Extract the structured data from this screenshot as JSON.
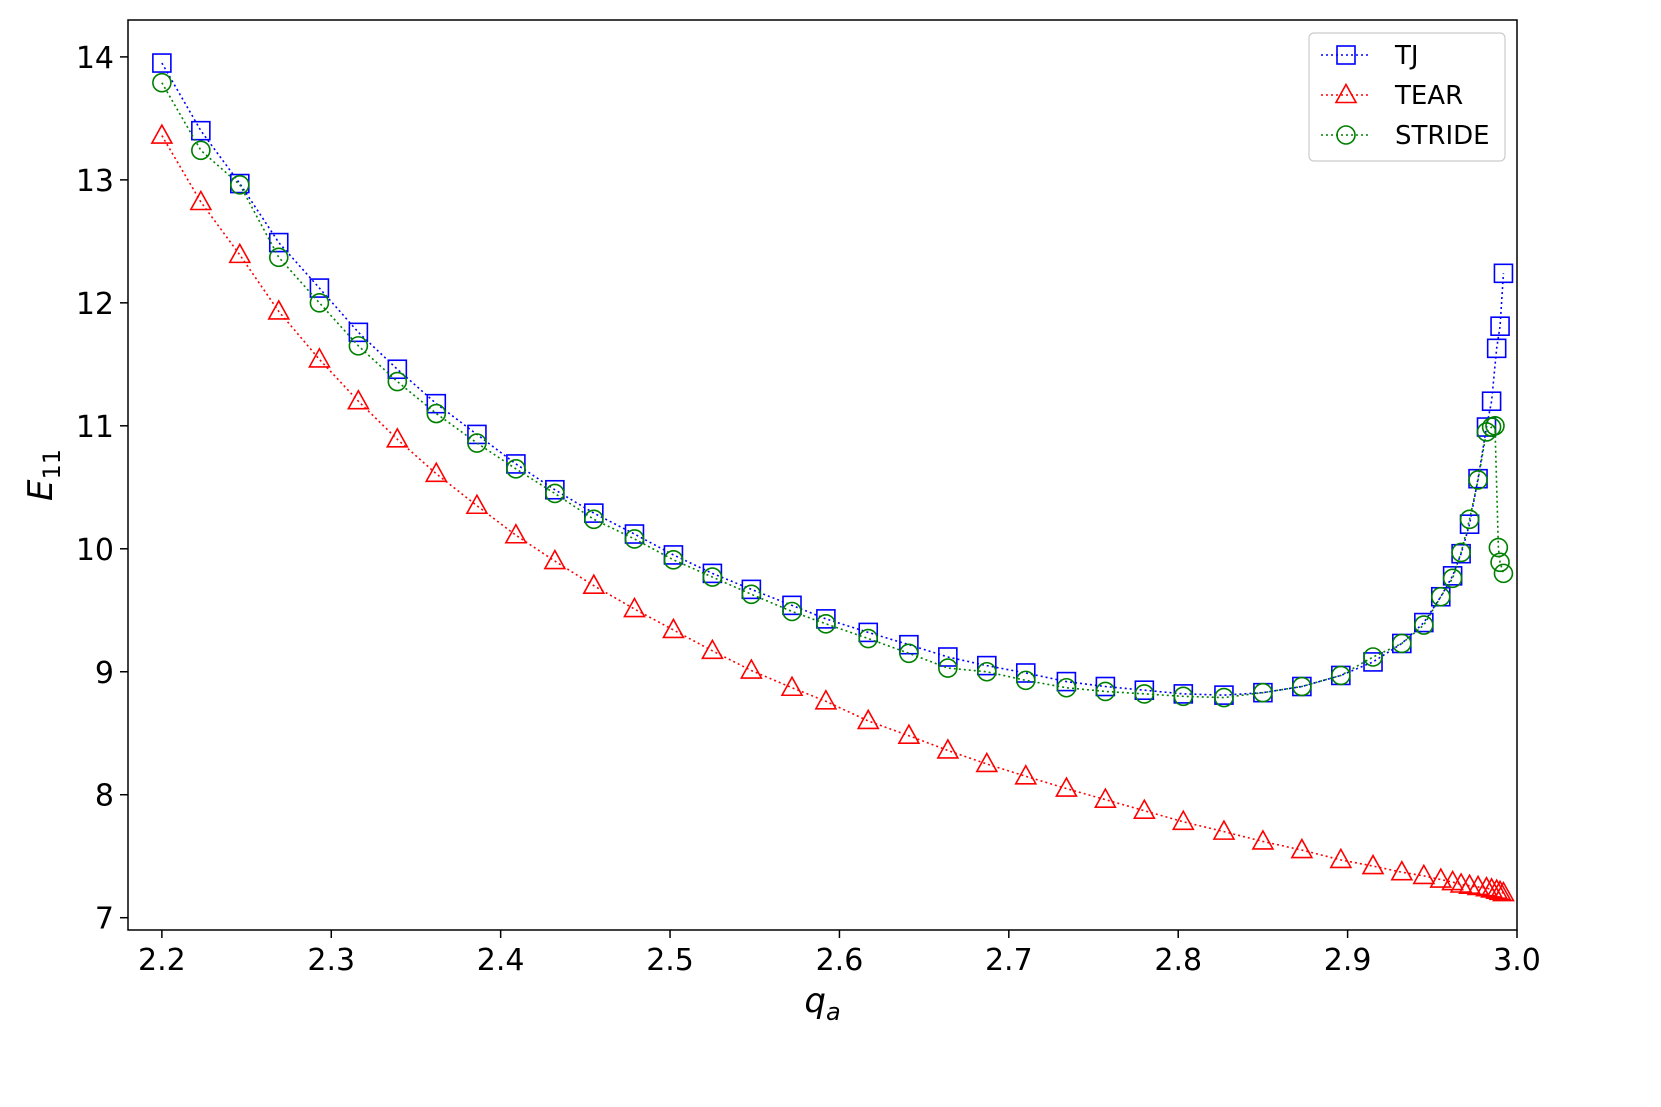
{
  "chart_data": {
    "type": "line",
    "xlabel": "q",
    "xlabel_sub": "a",
    "ylabel": "E",
    "ylabel_sub": "11",
    "xlim": [
      2.18,
      3.0
    ],
    "ylim": [
      6.9,
      14.3
    ],
    "xticks": [
      "2.2",
      "2.3",
      "2.4",
      "2.5",
      "2.6",
      "2.7",
      "2.8",
      "2.9",
      "3.0"
    ],
    "yticks": [
      "7",
      "8",
      "9",
      "10",
      "11",
      "12",
      "13",
      "14"
    ],
    "legend_position": "top-right",
    "grid": false,
    "series": [
      {
        "name": "TJ",
        "color": "#0000ff",
        "marker": "square",
        "x": [
          2.2,
          2.223,
          2.246,
          2.269,
          2.293,
          2.316,
          2.339,
          2.362,
          2.386,
          2.409,
          2.432,
          2.455,
          2.479,
          2.502,
          2.525,
          2.548,
          2.572,
          2.592,
          2.617,
          2.641,
          2.664,
          2.687,
          2.71,
          2.734,
          2.757,
          2.78,
          2.803,
          2.827,
          2.85,
          2.873,
          2.896,
          2.915,
          2.932,
          2.945,
          2.955,
          2.962,
          2.967,
          2.972,
          2.977,
          2.982,
          2.985,
          2.988,
          2.99,
          2.992
        ],
        "y": [
          13.95,
          13.4,
          12.97,
          12.49,
          12.12,
          11.76,
          11.46,
          11.18,
          10.93,
          10.69,
          10.48,
          10.29,
          10.12,
          9.95,
          9.8,
          9.67,
          9.54,
          9.43,
          9.32,
          9.22,
          9.12,
          9.05,
          8.99,
          8.92,
          8.88,
          8.85,
          8.82,
          8.81,
          8.83,
          8.88,
          8.97,
          9.08,
          9.23,
          9.4,
          9.61,
          9.78,
          9.96,
          10.2,
          10.57,
          10.99,
          11.2,
          11.63,
          11.81,
          12.24
        ]
      },
      {
        "name": "TEAR",
        "color": "#ff0000",
        "marker": "triangle",
        "x": [
          2.2,
          2.223,
          2.246,
          2.269,
          2.293,
          2.316,
          2.339,
          2.362,
          2.386,
          2.409,
          2.432,
          2.455,
          2.479,
          2.502,
          2.525,
          2.548,
          2.572,
          2.592,
          2.617,
          2.641,
          2.664,
          2.687,
          2.71,
          2.734,
          2.757,
          2.78,
          2.803,
          2.827,
          2.85,
          2.873,
          2.896,
          2.915,
          2.932,
          2.945,
          2.955,
          2.962,
          2.967,
          2.972,
          2.977,
          2.982,
          2.985,
          2.988,
          2.99,
          2.992
        ],
        "y": [
          13.36,
          12.82,
          12.39,
          11.93,
          11.54,
          11.2,
          10.89,
          10.61,
          10.35,
          10.11,
          9.9,
          9.7,
          9.51,
          9.34,
          9.17,
          9.01,
          8.87,
          8.76,
          8.6,
          8.48,
          8.36,
          8.25,
          8.15,
          8.05,
          7.96,
          7.87,
          7.78,
          7.7,
          7.62,
          7.55,
          7.47,
          7.42,
          7.37,
          7.34,
          7.31,
          7.29,
          7.27,
          7.26,
          7.25,
          7.24,
          7.23,
          7.22,
          7.21,
          7.2
        ]
      },
      {
        "name": "STRIDE",
        "color": "#008000",
        "marker": "circle",
        "x": [
          2.2,
          2.223,
          2.246,
          2.269,
          2.293,
          2.316,
          2.339,
          2.362,
          2.386,
          2.409,
          2.432,
          2.455,
          2.479,
          2.502,
          2.525,
          2.548,
          2.572,
          2.592,
          2.617,
          2.641,
          2.664,
          2.687,
          2.71,
          2.734,
          2.757,
          2.78,
          2.803,
          2.827,
          2.85,
          2.873,
          2.896,
          2.915,
          2.932,
          2.945,
          2.955,
          2.962,
          2.967,
          2.972,
          2.977,
          2.982,
          2.985,
          2.987,
          2.989,
          2.99,
          2.992
        ],
        "y": [
          13.79,
          13.24,
          12.96,
          12.37,
          12.0,
          11.65,
          11.36,
          11.1,
          10.86,
          10.65,
          10.45,
          10.24,
          10.08,
          9.91,
          9.77,
          9.63,
          9.49,
          9.39,
          9.27,
          9.15,
          9.03,
          9.0,
          8.93,
          8.87,
          8.84,
          8.82,
          8.8,
          8.79,
          8.83,
          8.88,
          8.97,
          9.12,
          9.23,
          9.38,
          9.61,
          9.76,
          9.97,
          10.24,
          10.56,
          10.95,
          10.99,
          11.0,
          10.01,
          9.89,
          9.8
        ]
      }
    ]
  }
}
